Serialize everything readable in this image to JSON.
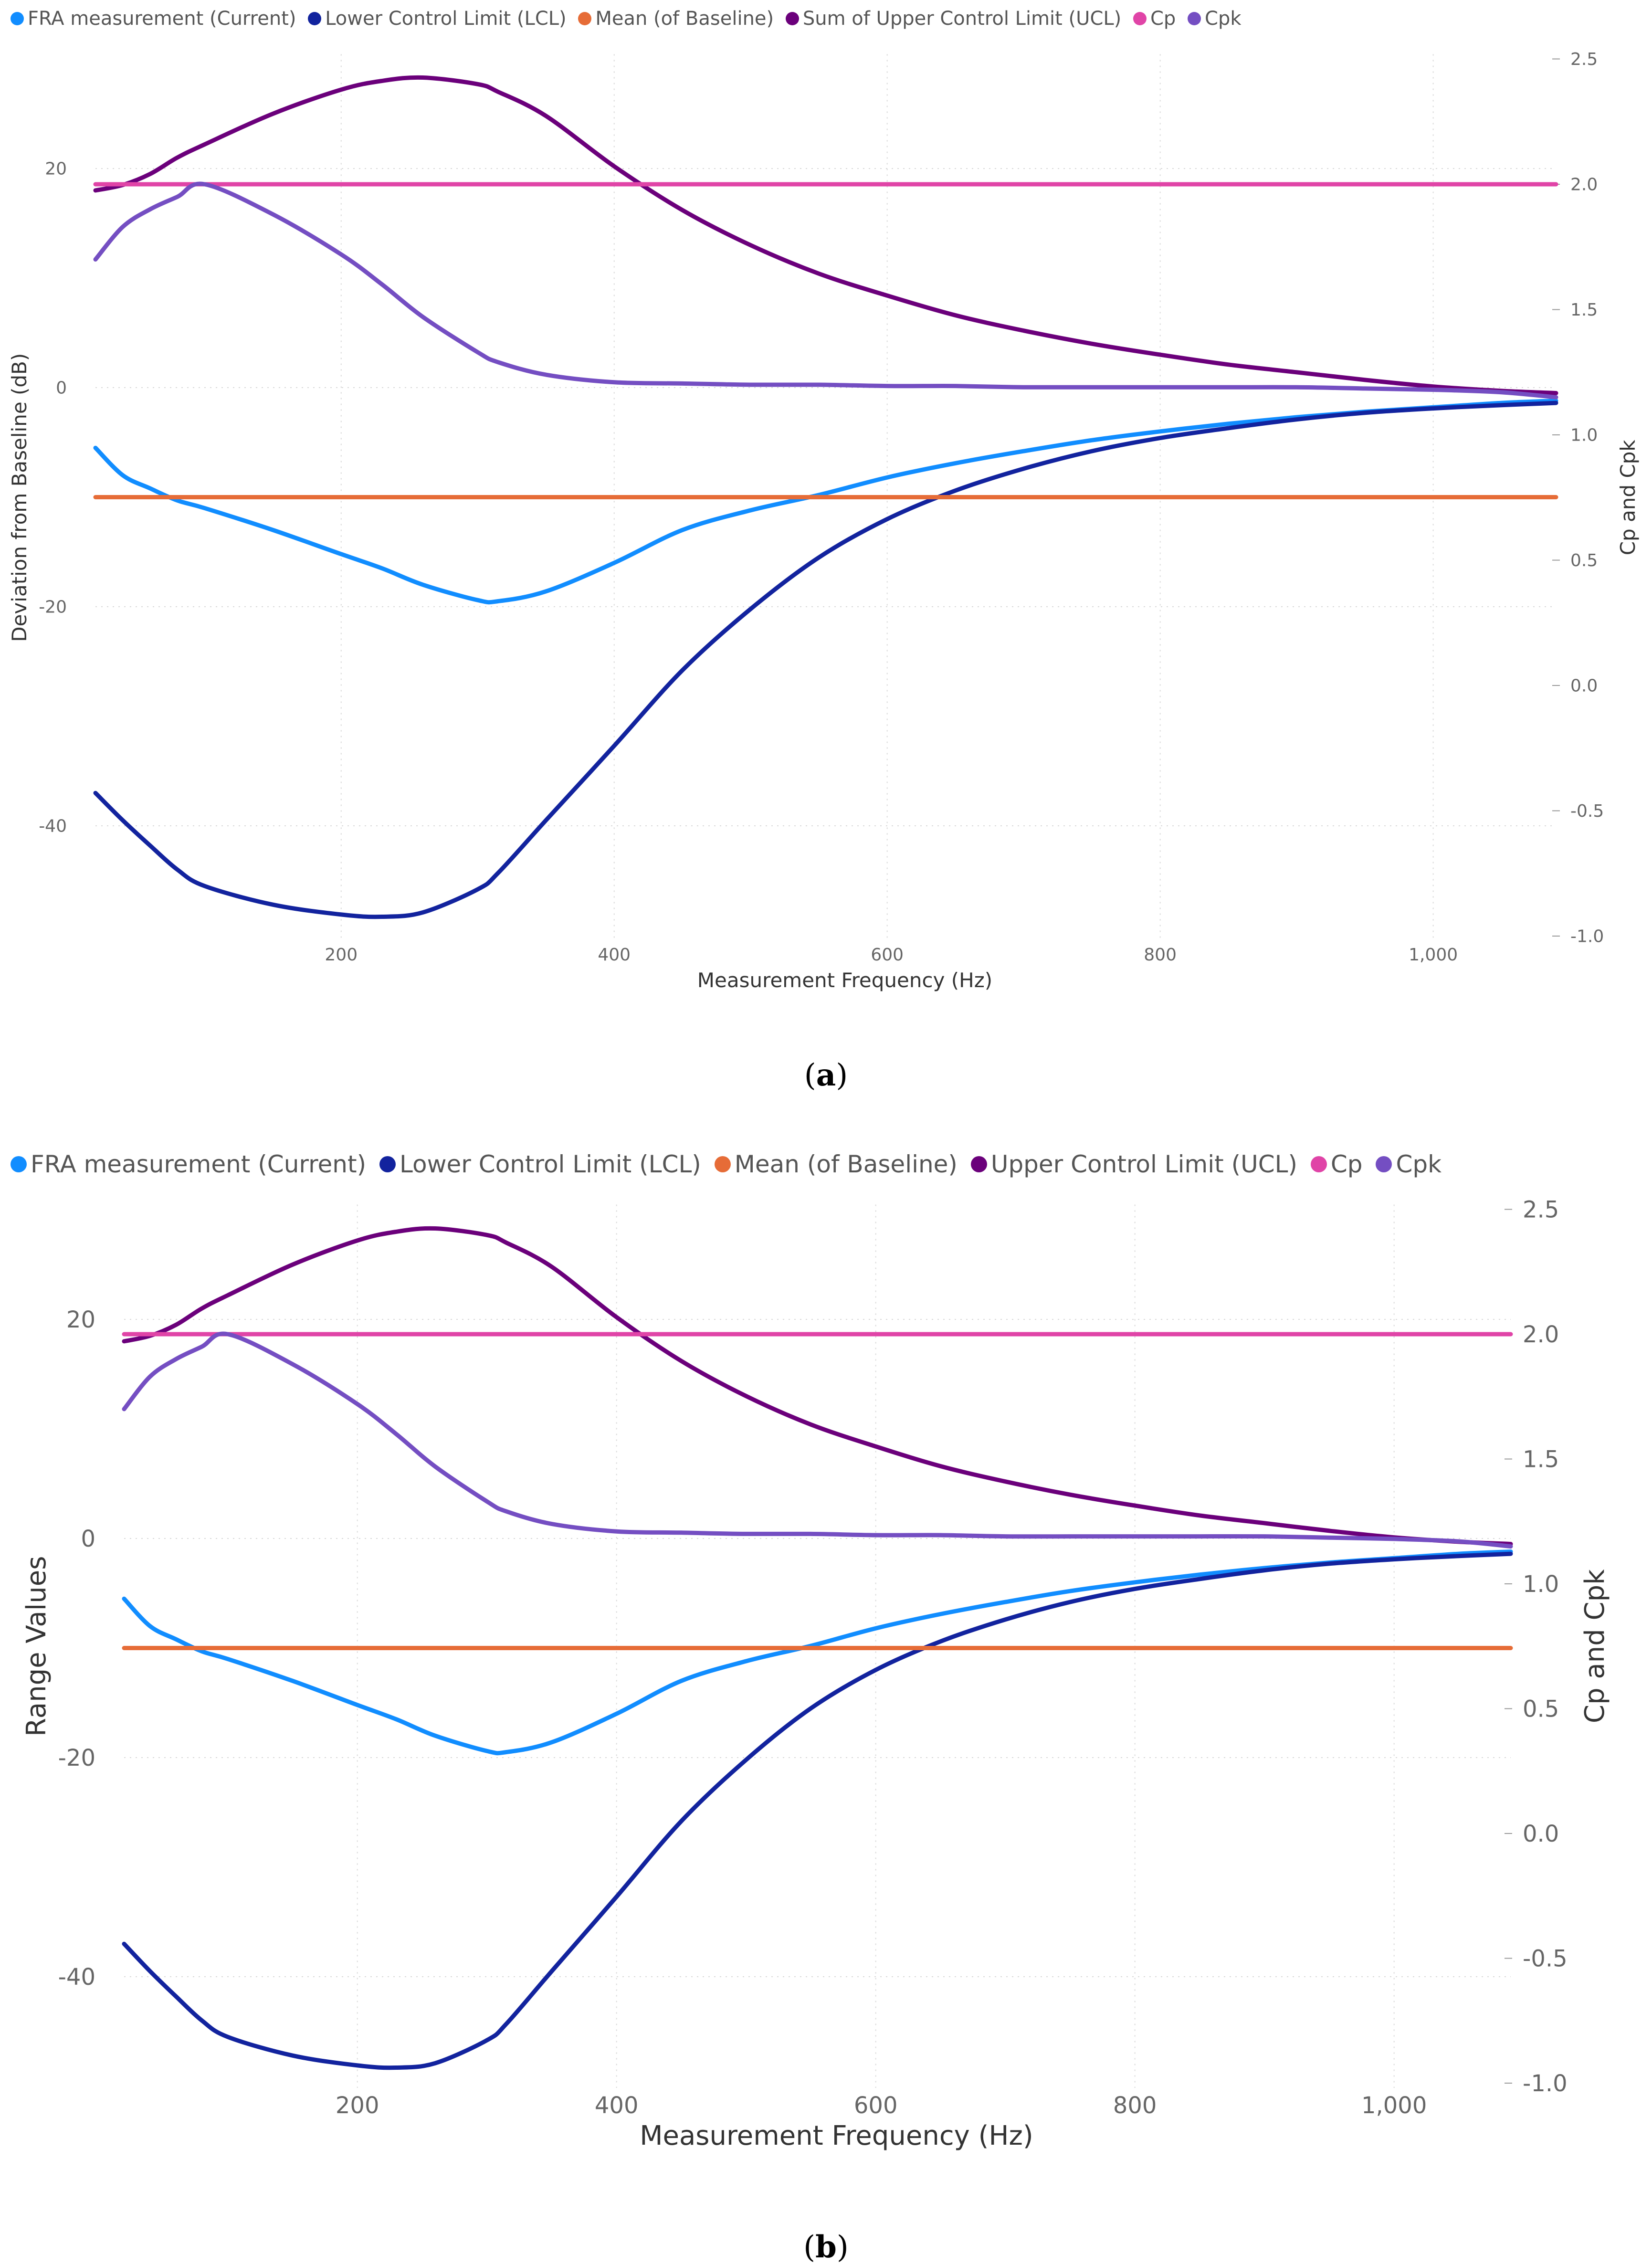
{
  "chart_data": [
    {
      "type": "line",
      "caption": "(a)",
      "caption_bold": "a",
      "legend": [
        {
          "name": "FRA measurement (Current)",
          "color": "#118DFF"
        },
        {
          "name": "Lower Control Limit (LCL)",
          "color": "#12239E"
        },
        {
          "name": "Mean (of Baseline)",
          "color": "#E66C37"
        },
        {
          "name": "Sum of Upper Control Limit (UCL)",
          "color": "#6B007B"
        },
        {
          "name": "Cp",
          "color": "#E044A7"
        },
        {
          "name": "Cpk",
          "color": "#744EC2"
        }
      ],
      "xlabel": "Measurement Frequency (Hz)",
      "ylabel": "Deviation from Baseline (dB)",
      "y2label": "Cp and Cpk",
      "xlim": [
        20,
        1090
      ],
      "ylim": [
        -50,
        30
      ],
      "y2lim": [
        -1.0,
        2.5
      ],
      "xticks": [
        200,
        400,
        600,
        800,
        1000
      ],
      "xtick_labels": [
        "200",
        "400",
        "600",
        "800",
        "1,000"
      ],
      "yticks": [
        20,
        0,
        -20,
        -40
      ],
      "ytick_labels": [
        "20",
        "0",
        "-20",
        "-40"
      ],
      "y2ticks": [
        2.5,
        2.0,
        1.5,
        1.0,
        0.5,
        0.0,
        -0.5,
        -1.0
      ],
      "y2tick_labels": [
        "2.5",
        "2.0",
        "1.5",
        "1.0",
        "0.5",
        "0.0",
        "-0.5",
        "-1.0"
      ]
    },
    {
      "type": "line",
      "caption": "(b)",
      "caption_bold": "b",
      "legend": [
        {
          "name": "FRA measurement (Current)",
          "color": "#118DFF"
        },
        {
          "name": "Lower Control Limit (LCL)",
          "color": "#12239E"
        },
        {
          "name": "Mean (of Baseline)",
          "color": "#E66C37"
        },
        {
          "name": "Upper Control Limit (UCL)",
          "color": "#6B007B"
        },
        {
          "name": "Cp",
          "color": "#E044A7"
        },
        {
          "name": "Cpk",
          "color": "#744EC2"
        }
      ],
      "xlabel": "Measurement Frequency (Hz)",
      "ylabel": "Range Values",
      "y2label": "Cp and Cpk",
      "xlim": [
        20,
        1090
      ],
      "ylim": [
        -50,
        30
      ],
      "y2lim": [
        -1.0,
        2.5
      ],
      "xticks": [
        200,
        400,
        600,
        800,
        1000
      ],
      "xtick_labels": [
        "200",
        "400",
        "600",
        "800",
        "1,000"
      ],
      "yticks": [
        20,
        0,
        -20,
        -40
      ],
      "ytick_labels": [
        "20",
        "0",
        "-20",
        "-40"
      ],
      "y2ticks": [
        2.5,
        2.0,
        1.5,
        1.0,
        0.5,
        0.0,
        -0.5,
        -1.0
      ],
      "y2tick_labels": [
        "2.5",
        "2.0",
        "1.5",
        "1.0",
        "0.5",
        "0.0",
        "-0.5",
        "-1.0"
      ]
    }
  ],
  "series": {
    "x": [
      20,
      40,
      60,
      80,
      100,
      150,
      200,
      230,
      260,
      300,
      315,
      350,
      400,
      450,
      500,
      550,
      600,
      650,
      700,
      750,
      800,
      850,
      900,
      950,
      1000,
      1050,
      1090
    ],
    "fra": [
      -5.5,
      -8,
      -9.2,
      -10.3,
      -11,
      -13,
      -15.2,
      -16.5,
      -18,
      -19.4,
      -19.5,
      -18.6,
      -16,
      -13,
      -11.2,
      -9.8,
      -8.2,
      -6.9,
      -5.8,
      -4.8,
      -4.0,
      -3.3,
      -2.7,
      -2.2,
      -1.8,
      -1.4,
      -1.2
    ],
    "lcl": [
      -37,
      -39.5,
      -41.8,
      -44,
      -45.5,
      -47.2,
      -48.1,
      -48.3,
      -47.9,
      -45.8,
      -44.3,
      -39.5,
      -32.7,
      -25.8,
      -20.2,
      -15.5,
      -12,
      -9.4,
      -7.4,
      -5.8,
      -4.6,
      -3.7,
      -2.9,
      -2.3,
      -1.9,
      -1.6,
      -1.4
    ],
    "mean": [
      -10,
      -10,
      -10,
      -10,
      -10,
      -10,
      -10,
      -10,
      -10,
      -10,
      -10,
      -10,
      -10,
      -10,
      -10,
      -10,
      -10,
      -10,
      -10,
      -10,
      -10,
      -10,
      -10,
      -10,
      -10,
      -10,
      -10
    ],
    "ucl": [
      18,
      18.5,
      19.5,
      21,
      22.2,
      25,
      27.2,
      28,
      28.3,
      27.7,
      27,
      24.8,
      20.2,
      16.2,
      13,
      10.4,
      8.4,
      6.6,
      5.2,
      4.0,
      3.0,
      2.1,
      1.4,
      0.7,
      0.1,
      -0.3,
      -0.5
    ],
    "cp": [
      2.0,
      2.0,
      2.0,
      2.0,
      2.0,
      2.0,
      2.0,
      2.0,
      2.0,
      2.0,
      2.0,
      2.0,
      2.0,
      2.0,
      2.0,
      2.0,
      2.0,
      2.0,
      2.0,
      2.0,
      2.0,
      2.0,
      2.0,
      2.0,
      2.0,
      2.0,
      2.0
    ],
    "cpk": [
      1.7,
      1.83,
      1.9,
      1.95,
      2.0,
      1.88,
      1.72,
      1.6,
      1.47,
      1.33,
      1.29,
      1.24,
      1.21,
      1.205,
      1.2,
      1.2,
      1.195,
      1.195,
      1.19,
      1.19,
      1.19,
      1.19,
      1.19,
      1.185,
      1.18,
      1.17,
      1.15
    ]
  }
}
